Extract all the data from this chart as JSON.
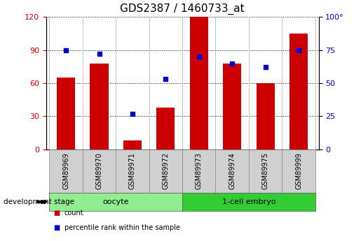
{
  "title": "GDS2387 / 1460733_at",
  "samples": [
    "GSM89969",
    "GSM89970",
    "GSM89971",
    "GSM89972",
    "GSM89973",
    "GSM89974",
    "GSM89975",
    "GSM89999"
  ],
  "counts": [
    65,
    78,
    8,
    38,
    120,
    78,
    60,
    105
  ],
  "percentiles": [
    75,
    72,
    27,
    53,
    70,
    65,
    62,
    75
  ],
  "bar_color": "#cc0000",
  "dot_color": "#0000cc",
  "left_ylim": [
    0,
    120
  ],
  "left_yticks": [
    0,
    30,
    60,
    90,
    120
  ],
  "right_ylim": [
    0,
    100
  ],
  "right_yticks": [
    0,
    25,
    50,
    75,
    100
  ],
  "right_yticklabels": [
    "0",
    "25",
    "50",
    "75",
    "100°"
  ],
  "groups": [
    {
      "label": "oocyte",
      "indices": [
        0,
        1,
        2,
        3
      ],
      "color": "#90ee90"
    },
    {
      "label": "1-cell embryo",
      "indices": [
        4,
        5,
        6,
        7
      ],
      "color": "#32cd32"
    }
  ],
  "group_label": "development stage",
  "legend_items": [
    {
      "label": "count",
      "color": "#cc0000"
    },
    {
      "label": "percentile rank within the sample",
      "color": "#0000cc"
    }
  ],
  "bg_color": "#ffffff",
  "left_tick_color": "#cc0000",
  "right_tick_color": "#0000cc",
  "grid_color": "#000000",
  "title_fontsize": 11,
  "tick_fontsize": 8,
  "sample_fontsize": 7,
  "group_fontsize": 8,
  "bar_width": 0.55
}
